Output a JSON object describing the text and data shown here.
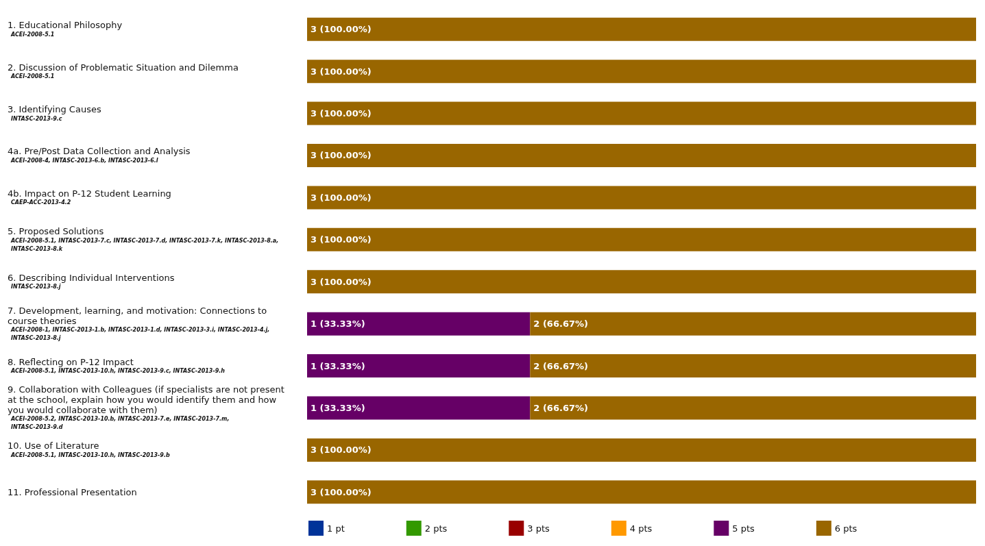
{
  "chart_data": {
    "type": "bar",
    "orientation": "horizontal",
    "stacked": true,
    "legend": "bottom",
    "grid": false,
    "tick_labels": "y",
    "categories": [
      "1. Educational Philosophy\nACEI-2008-5.1",
      "2. Discussion of Problematic Situation and Dilemma\nACEI-2008-5.1",
      "3. Identifying Causes\nINTASC-2013-9.c",
      "4a. Pre/Post Data Collection and Analysis\nACEI-2008-4, INTASC-2013-6.b, INTASC-2013-6.l",
      "4b. Impact on P-12 Student Learning\nCAEP-ACC-2013-4.2",
      "5. Proposed Solutions\nACEI-2008-5.1, INTASC-2013-7.c, INTASC-2013-7.d, INTASC-2013-7.k, INTASC-2013-8.a, INTASC-2013-8.k",
      "6. Describing Individual Interventions\nINTASC-2013-8.j",
      "7. Development, learning, and motivation: Connections to course theories\nACEI-2008-1, INTASC-2013-1.b, INTASC-2013-1.d, INTASC-2013-3.i, INTASC-2013-4.j, INTASC-2013-8.j",
      "8. Reflecting on P-12 Impact\nACEI-2008-5.1, INTASC-2013-10.h, INTASC-2013-9.c, INTASC-2013-9.h",
      "9. Collaboration with Colleagues (if specialists are not present at the school, explain how you would identify them and how you would collaborate with them)\nACEI-2008-5.2, INTASC-2013-10.b, INTASC-2013-7.e, INTASC-2013-7.m, INTASC-2013-9.d",
      "10. Use of Literature\nACEI-2008-5.1, INTASC-2013-10.h, INTASC-2013-9.b",
      "11. Professional Presentation"
    ],
    "series": [
      {
        "name": "1 pt",
        "color": "#003399",
        "values": [
          null,
          null,
          null,
          null,
          null,
          null,
          null,
          null,
          null,
          null,
          null,
          null
        ]
      },
      {
        "name": "2 pts",
        "color": "#339900",
        "values": [
          null,
          null,
          null,
          null,
          null,
          null,
          null,
          null,
          null,
          null,
          null,
          null
        ]
      },
      {
        "name": "3 pts",
        "color": "#990000",
        "values": [
          null,
          null,
          null,
          null,
          null,
          null,
          null,
          null,
          null,
          null,
          null,
          null
        ]
      },
      {
        "name": "4 pts",
        "color": "#ff9900",
        "values": [
          null,
          null,
          null,
          null,
          null,
          null,
          null,
          null,
          null,
          null,
          null,
          null
        ]
      },
      {
        "name": "5 pts",
        "color": "#660066",
        "values": [
          null,
          null,
          null,
          null,
          null,
          null,
          null,
          1,
          1,
          1,
          null,
          null
        ],
        "value_labels": [
          null,
          null,
          null,
          null,
          null,
          null,
          null,
          "1 (33.33%)",
          "1 (33.33%)",
          "1 (33.33%)",
          null,
          null
        ]
      },
      {
        "name": "6 pts",
        "color": "#996600",
        "values": [
          3,
          3,
          3,
          3,
          3,
          3,
          3,
          2,
          2,
          2,
          3,
          3
        ],
        "value_labels": [
          "3 (100.00%)",
          "3 (100.00%)",
          "3 (100.00%)",
          "3 (100.00%)",
          "3 (100.00%)",
          "3 (100.00%)",
          "3 (100.00%)",
          "2 (66.67%)",
          "2 (66.67%)",
          "2 (66.67%)",
          "3 (100.00%)",
          "3 (100.00%)"
        ]
      }
    ]
  }
}
